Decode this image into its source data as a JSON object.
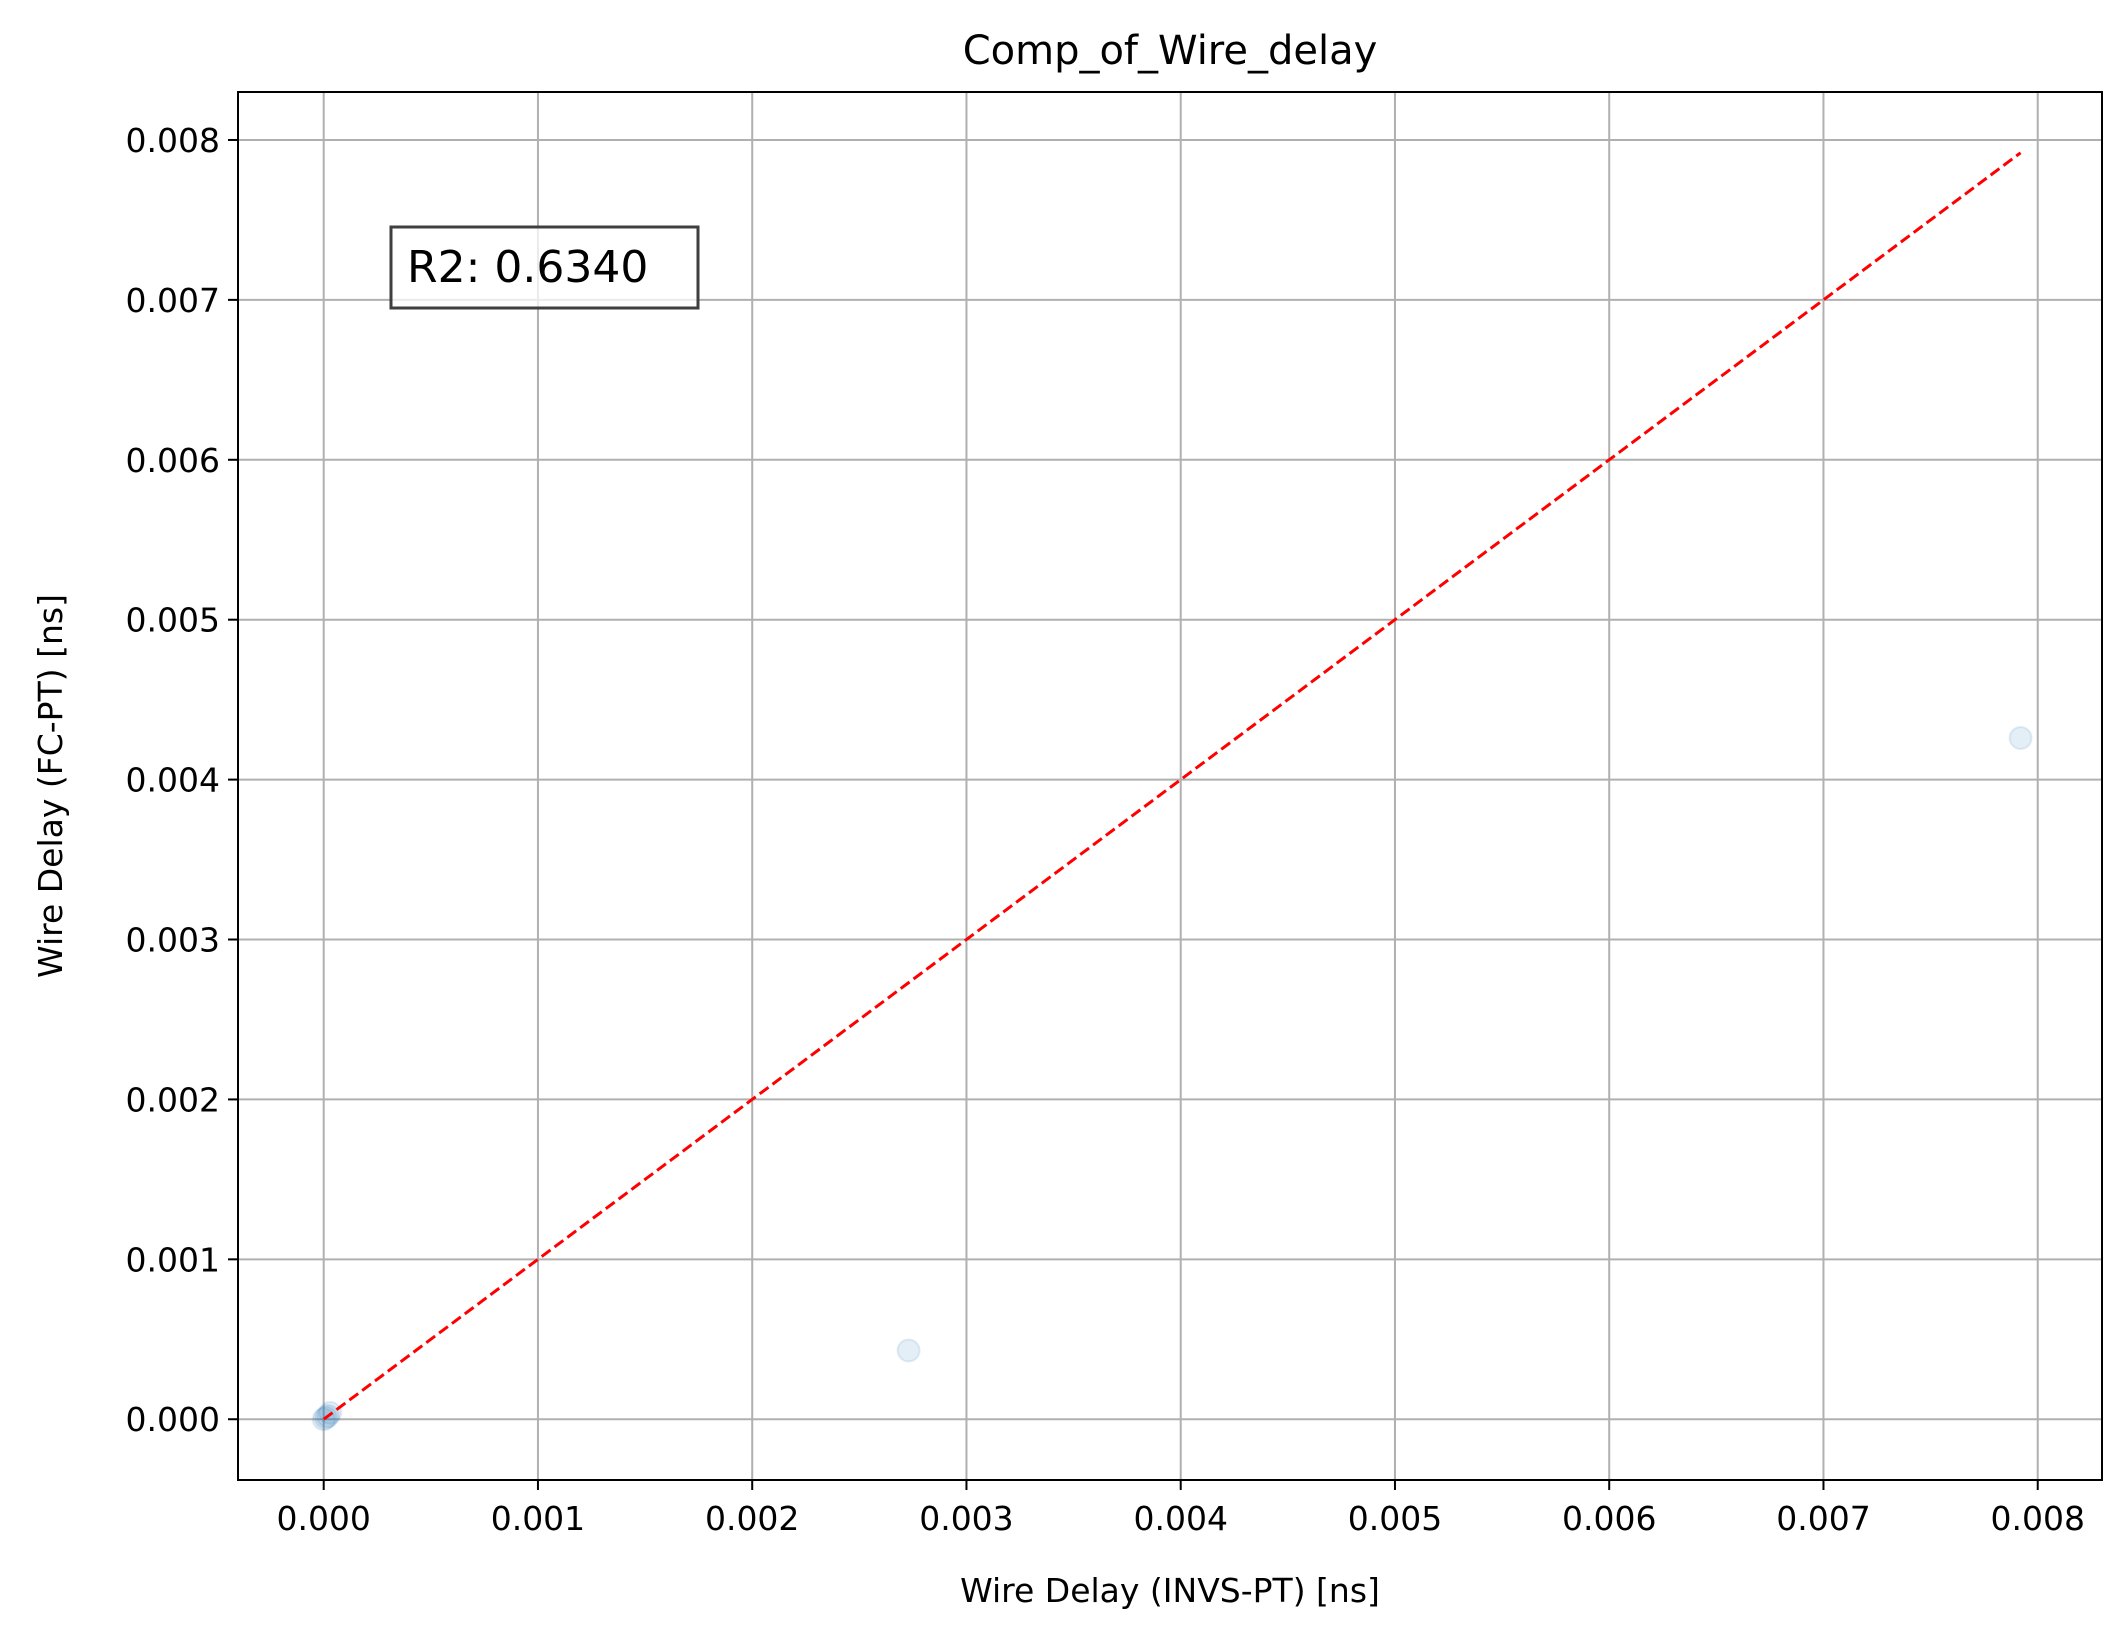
{
  "chart_data": {
    "type": "scatter",
    "title": "Comp_of_Wire_delay",
    "xlabel": "Wire Delay (INVS-PT) [ns]",
    "ylabel": "Wire Delay (FC-PT) [ns]",
    "xlim": [
      -0.0004,
      0.0083
    ],
    "ylim": [
      -0.00038,
      0.0083
    ],
    "xticks": [
      0.0,
      0.001,
      0.002,
      0.003,
      0.004,
      0.005,
      0.006,
      0.007,
      0.008
    ],
    "yticks": [
      0.0,
      0.001,
      0.002,
      0.003,
      0.004,
      0.005,
      0.006,
      0.007,
      0.008
    ],
    "xtick_labels": [
      "0.000",
      "0.001",
      "0.002",
      "0.003",
      "0.004",
      "0.005",
      "0.006",
      "0.007",
      "0.008"
    ],
    "ytick_labels": [
      "0.000",
      "0.001",
      "0.002",
      "0.003",
      "0.004",
      "0.005",
      "0.006",
      "0.007",
      "0.008"
    ],
    "grid": true,
    "points": [
      {
        "x": 0.0,
        "y": 0.0
      },
      {
        "x": 1e-05,
        "y": 1e-05
      },
      {
        "x": 2e-05,
        "y": 2e-05
      },
      {
        "x": 3e-05,
        "y": 4e-05
      },
      {
        "x": 0.00273,
        "y": 0.00043
      },
      {
        "x": 0.00792,
        "y": 0.00426
      }
    ],
    "reference_line": {
      "x": [
        0.0,
        0.00792
      ],
      "y": [
        0.0,
        0.00792
      ],
      "style": "dashed"
    },
    "annotation": "R2: 0.6340",
    "colors": {
      "points": "#1f77b4",
      "reference_line": "#ff0000",
      "grid": "#b0b0b0",
      "axes": "#000000"
    }
  }
}
